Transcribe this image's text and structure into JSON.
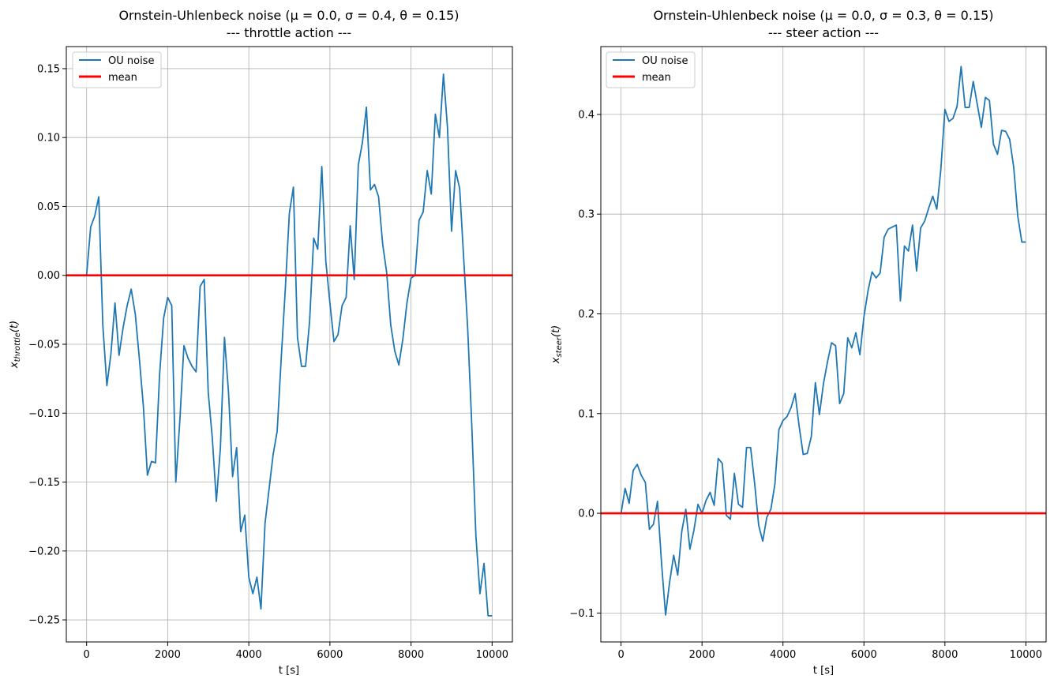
{
  "chart_data": [
    {
      "type": "line",
      "title_line1": "Ornstein-Uhlenbeck noise (μ = 0.0, σ = 0.4, θ = 0.15)",
      "title_line2": "--- throttle action ---",
      "xlabel": "t [s]",
      "ylabel_main": "x",
      "ylabel_sub": "throttle",
      "ylabel_tail": "(t)",
      "xlim": [
        -500,
        10500
      ],
      "ylim": [
        -0.266,
        0.166
      ],
      "xticks": [
        0,
        2000,
        4000,
        6000,
        8000,
        10000
      ],
      "xtick_labels": [
        "0",
        "2000",
        "4000",
        "6000",
        "8000",
        "10000"
      ],
      "yticks": [
        -0.25,
        -0.2,
        -0.15,
        -0.1,
        -0.05,
        0.0,
        0.05,
        0.1,
        0.15
      ],
      "ytick_labels": [
        "−0.25",
        "−0.20",
        "−0.15",
        "−0.10",
        "−0.05",
        "0.00",
        "0.05",
        "0.10",
        "0.15"
      ],
      "grid": true,
      "legend_position": "upper-left",
      "series": [
        {
          "name": "OU noise",
          "color": "#1f77b4",
          "x": [
            0,
            100,
            200,
            300,
            400,
            500,
            600,
            700,
            800,
            900,
            1000,
            1100,
            1200,
            1300,
            1400,
            1500,
            1600,
            1700,
            1800,
            1900,
            2000,
            2100,
            2200,
            2300,
            2400,
            2500,
            2600,
            2700,
            2800,
            2900,
            3000,
            3100,
            3200,
            3300,
            3400,
            3500,
            3600,
            3700,
            3800,
            3900,
            4000,
            4100,
            4200,
            4300,
            4400,
            4500,
            4600,
            4700,
            4800,
            4900,
            5000,
            5100,
            5200,
            5300,
            5400,
            5500,
            5600,
            5700,
            5800,
            5900,
            6000,
            6100,
            6200,
            6300,
            6400,
            6500,
            6600,
            6700,
            6800,
            6900,
            7000,
            7100,
            7200,
            7300,
            7400,
            7500,
            7600,
            7700,
            7800,
            7900,
            8000,
            8100,
            8200,
            8300,
            8400,
            8500,
            8600,
            8700,
            8800,
            8900,
            9000,
            9100,
            9200,
            9300,
            9400,
            9500,
            9600,
            9700,
            9800,
            9900,
            10000
          ],
          "y": [
            0.0,
            0.035,
            0.043,
            0.057,
            -0.036,
            -0.08,
            -0.057,
            -0.02,
            -0.058,
            -0.038,
            -0.022,
            -0.01,
            -0.028,
            -0.06,
            -0.095,
            -0.145,
            -0.135,
            -0.136,
            -0.072,
            -0.031,
            -0.016,
            -0.022,
            -0.15,
            -0.105,
            -0.051,
            -0.06,
            -0.066,
            -0.07,
            -0.008,
            -0.003,
            -0.085,
            -0.118,
            -0.164,
            -0.125,
            -0.045,
            -0.085,
            -0.146,
            -0.125,
            -0.186,
            -0.174,
            -0.219,
            -0.231,
            -0.219,
            -0.242,
            -0.18,
            -0.155,
            -0.13,
            -0.113,
            -0.06,
            -0.01,
            0.045,
            0.064,
            -0.045,
            -0.066,
            -0.066,
            -0.033,
            0.027,
            0.019,
            0.079,
            0.01,
            -0.02,
            -0.048,
            -0.043,
            -0.022,
            -0.016,
            0.036,
            -0.003,
            0.08,
            0.096,
            0.122,
            0.062,
            0.066,
            0.057,
            0.023,
            0.002,
            -0.036,
            -0.055,
            -0.065,
            -0.046,
            -0.02,
            -0.002,
            0.0,
            0.04,
            0.046,
            0.076,
            0.059,
            0.117,
            0.1,
            0.146,
            0.107,
            0.032,
            0.076,
            0.063,
            0.012,
            -0.04,
            -0.11,
            -0.189,
            -0.231,
            -0.209,
            -0.247,
            -0.247
          ]
        },
        {
          "name": "mean",
          "color": "#ff0000",
          "value": 0.0
        }
      ]
    },
    {
      "type": "line",
      "title_line1": "Ornstein-Uhlenbeck noise (μ = 0.0, σ = 0.3, θ = 0.15)",
      "title_line2": "--- steer action ---",
      "xlabel": "t [s]",
      "ylabel_main": "x",
      "ylabel_sub": "steer",
      "ylabel_tail": "(t)",
      "xlim": [
        -500,
        10500
      ],
      "ylim": [
        -0.129,
        0.468
      ],
      "xticks": [
        0,
        2000,
        4000,
        6000,
        8000,
        10000
      ],
      "xtick_labels": [
        "0",
        "2000",
        "4000",
        "6000",
        "8000",
        "10000"
      ],
      "yticks": [
        -0.1,
        0.0,
        0.1,
        0.2,
        0.3,
        0.4
      ],
      "ytick_labels": [
        "−0.1",
        "0.0",
        "0.1",
        "0.2",
        "0.3",
        "0.4"
      ],
      "grid": true,
      "legend_position": "upper-left",
      "series": [
        {
          "name": "OU noise",
          "color": "#1f77b4",
          "x": [
            0,
            100,
            200,
            300,
            400,
            500,
            600,
            700,
            800,
            900,
            1000,
            1100,
            1200,
            1300,
            1400,
            1500,
            1600,
            1700,
            1800,
            1900,
            2000,
            2100,
            2200,
            2300,
            2400,
            2500,
            2600,
            2700,
            2800,
            2900,
            3000,
            3100,
            3200,
            3300,
            3400,
            3500,
            3600,
            3700,
            3800,
            3900,
            4000,
            4100,
            4200,
            4300,
            4400,
            4500,
            4600,
            4700,
            4800,
            4900,
            5000,
            5100,
            5200,
            5300,
            5400,
            5500,
            5600,
            5700,
            5800,
            5900,
            6000,
            6100,
            6200,
            6300,
            6400,
            6500,
            6600,
            6700,
            6800,
            6900,
            7000,
            7100,
            7200,
            7300,
            7400,
            7500,
            7600,
            7700,
            7800,
            7900,
            8000,
            8100,
            8200,
            8300,
            8400,
            8500,
            8600,
            8700,
            8800,
            8900,
            9000,
            9100,
            9200,
            9300,
            9400,
            9500,
            9600,
            9700,
            9800,
            9900,
            10000
          ],
          "y": [
            0.0,
            0.025,
            0.01,
            0.043,
            0.049,
            0.038,
            0.031,
            -0.016,
            -0.011,
            0.012,
            -0.05,
            -0.102,
            -0.069,
            -0.042,
            -0.062,
            -0.018,
            0.004,
            -0.036,
            -0.017,
            0.009,
            0.0,
            0.013,
            0.021,
            0.008,
            0.055,
            0.05,
            -0.002,
            -0.006,
            0.04,
            0.009,
            0.006,
            0.066,
            0.066,
            0.03,
            -0.012,
            -0.028,
            -0.004,
            0.004,
            0.029,
            0.084,
            0.093,
            0.097,
            0.106,
            0.12,
            0.087,
            0.059,
            0.06,
            0.077,
            0.131,
            0.099,
            0.13,
            0.152,
            0.171,
            0.168,
            0.11,
            0.12,
            0.176,
            0.166,
            0.181,
            0.159,
            0.197,
            0.223,
            0.242,
            0.236,
            0.241,
            0.277,
            0.285,
            0.287,
            0.289,
            0.213,
            0.268,
            0.263,
            0.289,
            0.243,
            0.286,
            0.293,
            0.306,
            0.318,
            0.305,
            0.345,
            0.405,
            0.393,
            0.396,
            0.408,
            0.448,
            0.407,
            0.407,
            0.433,
            0.41,
            0.387,
            0.417,
            0.414,
            0.37,
            0.36,
            0.384,
            0.383,
            0.375,
            0.347,
            0.298,
            0.272,
            0.272
          ]
        },
        {
          "name": "mean",
          "color": "#ff0000",
          "value": 0.0
        }
      ]
    }
  ]
}
